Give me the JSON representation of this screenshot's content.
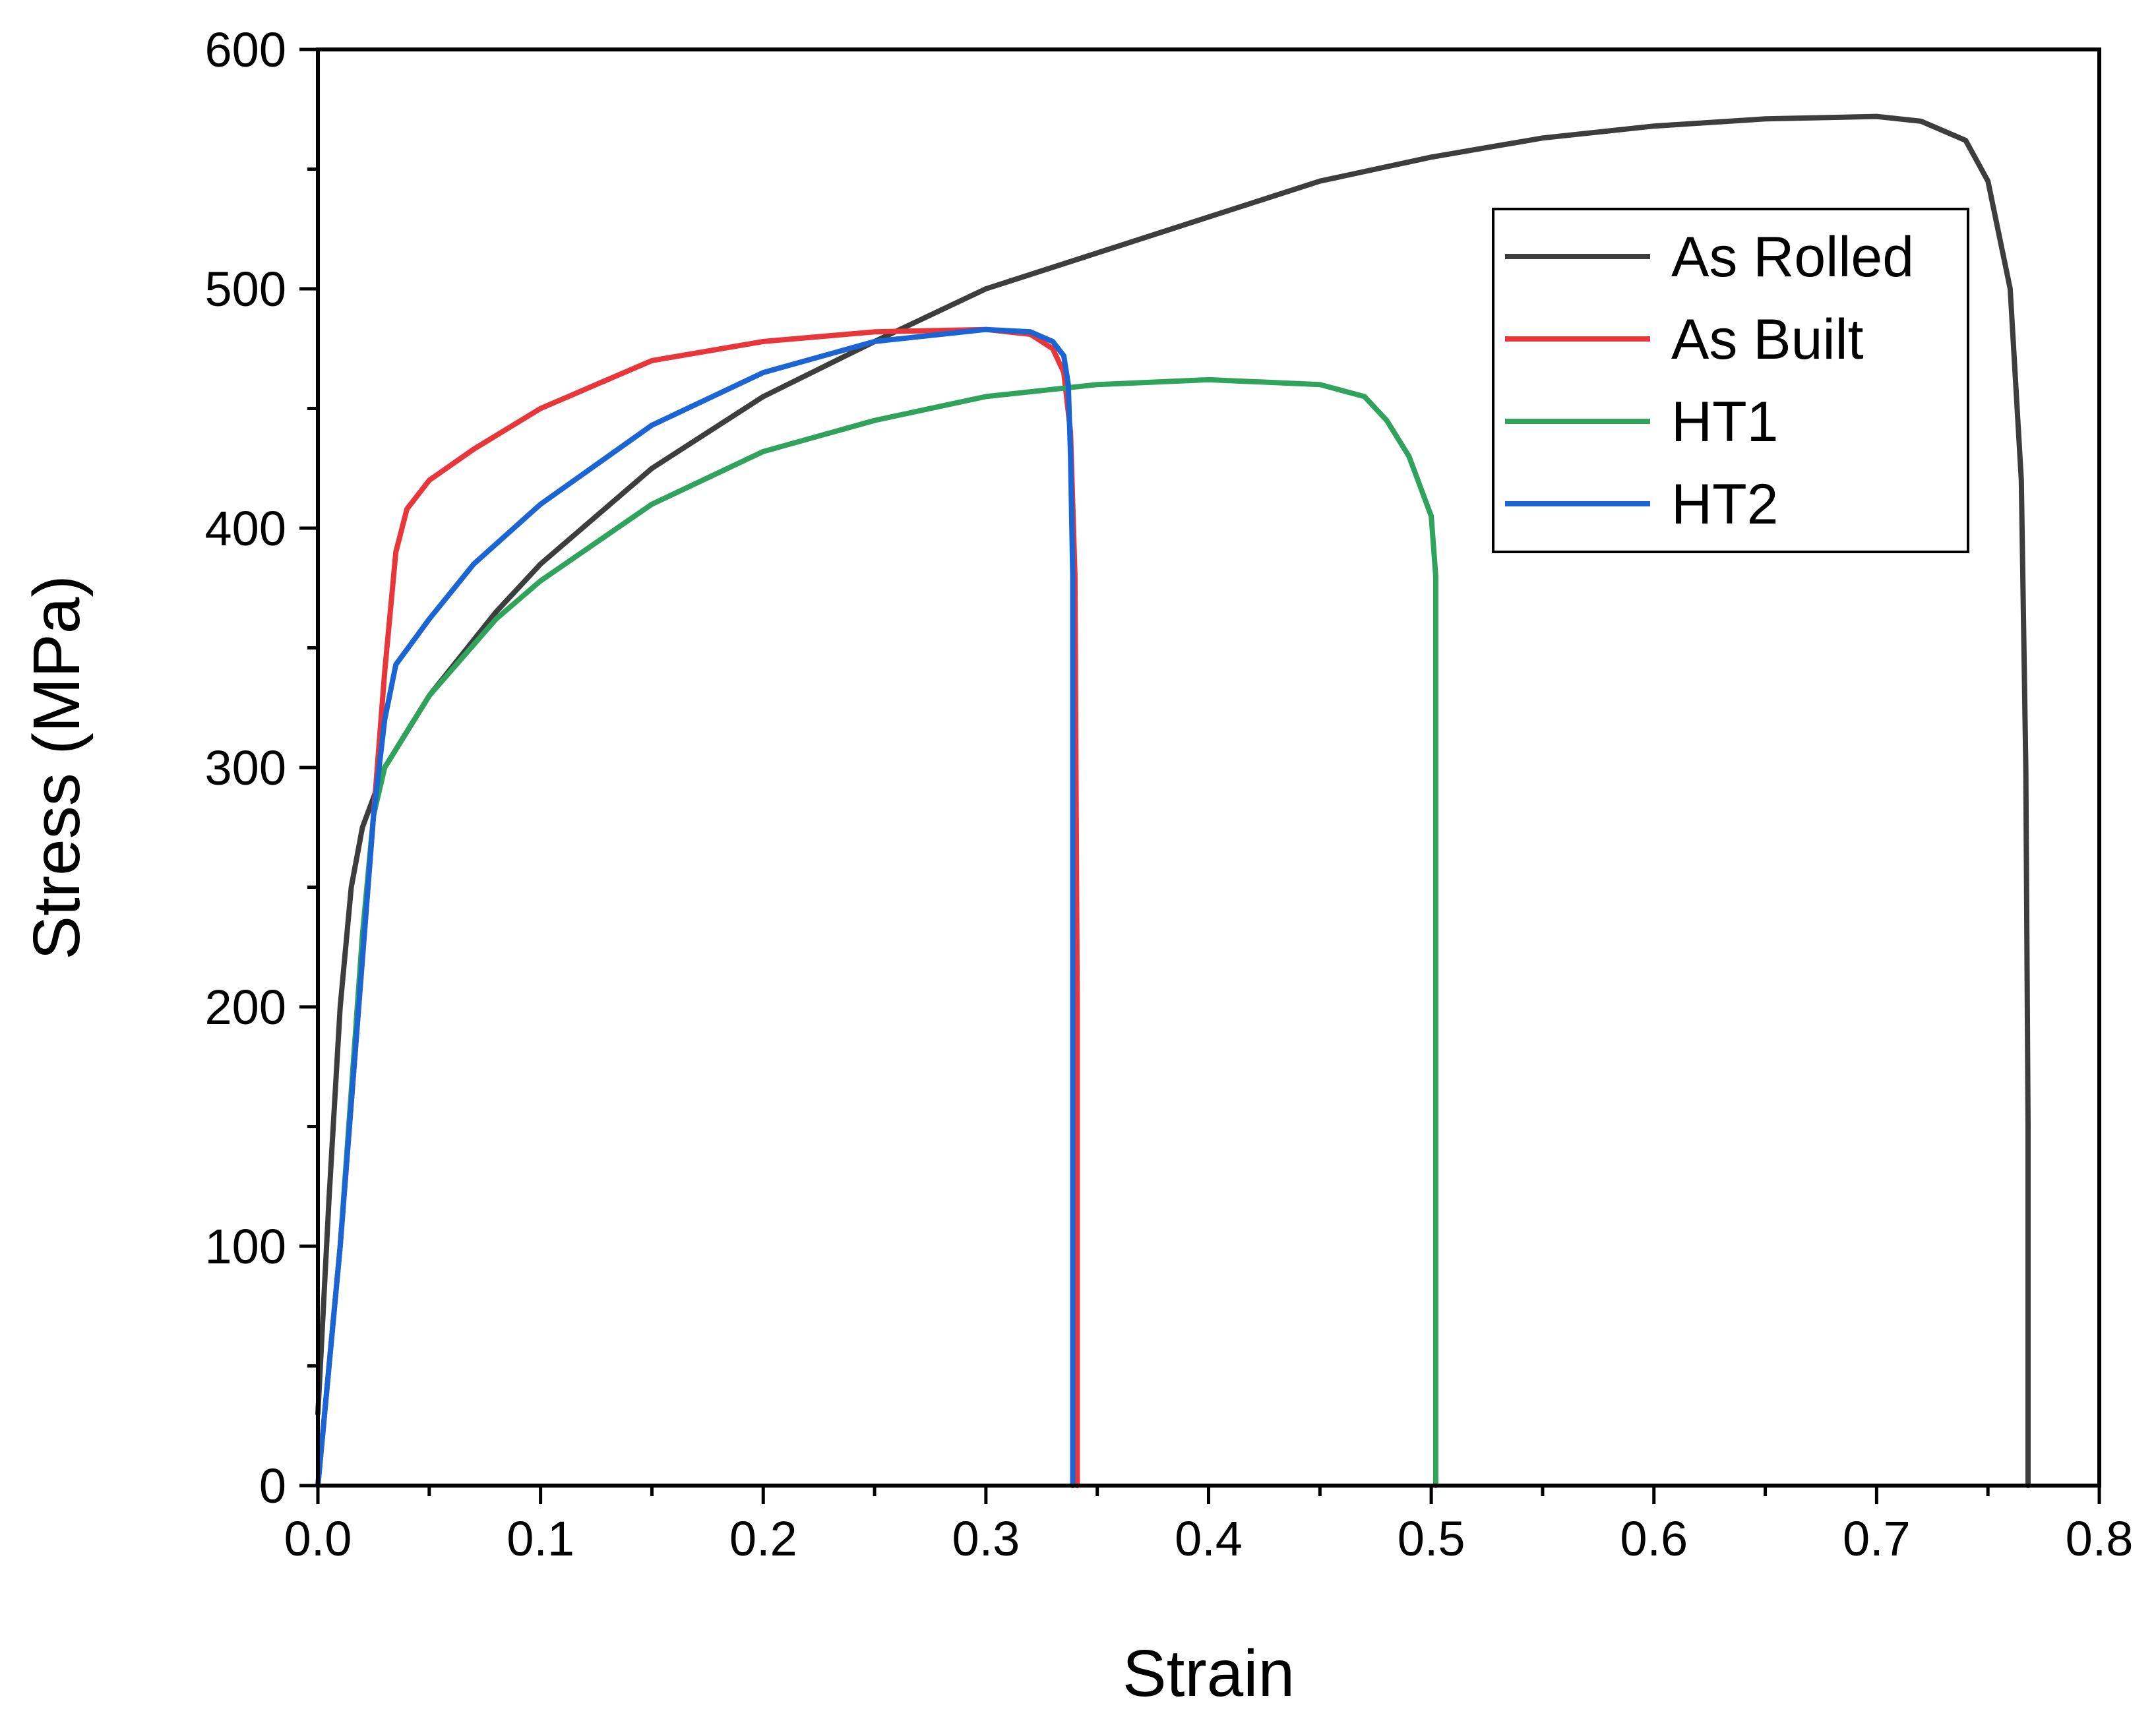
{
  "chart_data": {
    "type": "line",
    "title": "",
    "xlabel": "Strain",
    "ylabel": "Stress (MPa)",
    "xlim": [
      0.0,
      0.8
    ],
    "ylim": [
      0,
      600
    ],
    "x_ticks": [
      "0.0",
      "0.1",
      "0.2",
      "0.3",
      "0.4",
      "0.5",
      "0.6",
      "0.7",
      "0.8"
    ],
    "y_ticks": [
      "0",
      "100",
      "200",
      "300",
      "400",
      "500",
      "600"
    ],
    "grid": false,
    "legend_position": "top-right",
    "series": [
      {
        "name": "As Rolled",
        "color": "#3d3d3d",
        "points": [
          [
            0.0,
            30
          ],
          [
            0.005,
            120
          ],
          [
            0.01,
            200
          ],
          [
            0.015,
            250
          ],
          [
            0.02,
            275
          ],
          [
            0.03,
            300
          ],
          [
            0.05,
            330
          ],
          [
            0.08,
            365
          ],
          [
            0.1,
            385
          ],
          [
            0.15,
            425
          ],
          [
            0.2,
            455
          ],
          [
            0.25,
            478
          ],
          [
            0.3,
            500
          ],
          [
            0.35,
            515
          ],
          [
            0.4,
            530
          ],
          [
            0.45,
            545
          ],
          [
            0.5,
            555
          ],
          [
            0.55,
            563
          ],
          [
            0.6,
            568
          ],
          [
            0.65,
            571
          ],
          [
            0.7,
            572
          ],
          [
            0.72,
            570
          ],
          [
            0.74,
            562
          ],
          [
            0.75,
            545
          ],
          [
            0.76,
            500
          ],
          [
            0.765,
            420
          ],
          [
            0.767,
            300
          ],
          [
            0.768,
            150
          ],
          [
            0.768,
            0
          ]
        ]
      },
      {
        "name": "As Built",
        "color": "#e8363b",
        "points": [
          [
            0.0,
            0
          ],
          [
            0.01,
            100
          ],
          [
            0.02,
            220
          ],
          [
            0.025,
            280
          ],
          [
            0.03,
            340
          ],
          [
            0.035,
            390
          ],
          [
            0.04,
            408
          ],
          [
            0.05,
            420
          ],
          [
            0.07,
            433
          ],
          [
            0.1,
            450
          ],
          [
            0.15,
            470
          ],
          [
            0.2,
            478
          ],
          [
            0.25,
            482
          ],
          [
            0.3,
            483
          ],
          [
            0.32,
            481
          ],
          [
            0.33,
            475
          ],
          [
            0.335,
            465
          ],
          [
            0.338,
            440
          ],
          [
            0.34,
            380
          ],
          [
            0.341,
            200
          ],
          [
            0.341,
            0
          ]
        ]
      },
      {
        "name": "HT1",
        "color": "#2fa35b",
        "points": [
          [
            0.0,
            0
          ],
          [
            0.01,
            100
          ],
          [
            0.02,
            230
          ],
          [
            0.025,
            280
          ],
          [
            0.03,
            300
          ],
          [
            0.05,
            330
          ],
          [
            0.08,
            362
          ],
          [
            0.1,
            378
          ],
          [
            0.15,
            410
          ],
          [
            0.2,
            432
          ],
          [
            0.25,
            445
          ],
          [
            0.3,
            455
          ],
          [
            0.35,
            460
          ],
          [
            0.4,
            462
          ],
          [
            0.45,
            460
          ],
          [
            0.47,
            455
          ],
          [
            0.48,
            445
          ],
          [
            0.49,
            430
          ],
          [
            0.5,
            405
          ],
          [
            0.502,
            380
          ],
          [
            0.502,
            200
          ],
          [
            0.502,
            0
          ]
        ]
      },
      {
        "name": "HT2",
        "color": "#1a64d4",
        "points": [
          [
            0.0,
            0
          ],
          [
            0.01,
            100
          ],
          [
            0.02,
            220
          ],
          [
            0.025,
            280
          ],
          [
            0.03,
            320
          ],
          [
            0.035,
            343
          ],
          [
            0.05,
            362
          ],
          [
            0.07,
            385
          ],
          [
            0.1,
            410
          ],
          [
            0.15,
            443
          ],
          [
            0.2,
            465
          ],
          [
            0.25,
            478
          ],
          [
            0.3,
            483
          ],
          [
            0.32,
            482
          ],
          [
            0.33,
            478
          ],
          [
            0.335,
            472
          ],
          [
            0.337,
            460
          ],
          [
            0.338,
            430
          ],
          [
            0.339,
            380
          ],
          [
            0.339,
            200
          ],
          [
            0.339,
            0
          ]
        ]
      }
    ]
  }
}
